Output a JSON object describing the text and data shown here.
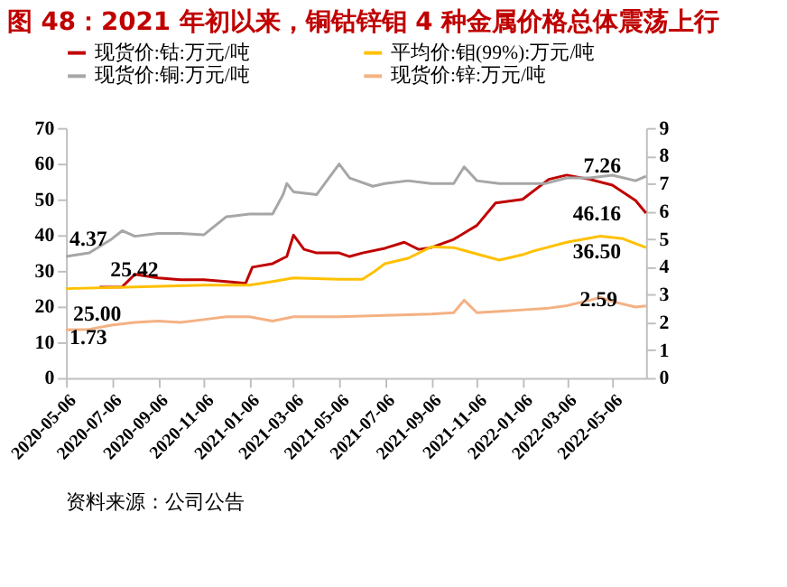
{
  "chart_data": {
    "type": "line",
    "title": "图 48：2021 年初以来，铜钴锌钼 4 种金属价格总体震荡上行",
    "annotations": [
      "资料来源：公司公告"
    ],
    "xlim": [
      "2020-05-06",
      "2022-06-20"
    ],
    "xticks": [
      "2020-05-06",
      "2020-07-06",
      "2020-09-06",
      "2020-11-06",
      "2021-01-06",
      "2021-03-06",
      "2021-05-06",
      "2021-07-06",
      "2021-09-06",
      "2021-11-06",
      "2022-01-06",
      "2022-03-06",
      "2022-05-06"
    ],
    "ylim": [
      0,
      70
    ],
    "yticks": [
      0,
      10,
      20,
      30,
      40,
      50,
      60,
      70
    ],
    "y2lim": [
      0,
      9
    ],
    "y2ticks": [
      0,
      1,
      2,
      3,
      4,
      5,
      6,
      7,
      8,
      9
    ],
    "grid": false,
    "legend": "top",
    "marker": "none",
    "line_style": "solid",
    "series": [
      {
        "name": "现货价:钴:万元/吨",
        "color": "#c00000",
        "x": [
          "2020-06-20",
          "2020-07-20",
          "2020-08-06",
          "2020-09-06",
          "2020-10-06",
          "2020-11-06",
          "2020-12-06",
          "2021-01-01",
          "2021-01-10",
          "2021-02-06",
          "2021-02-25",
          "2021-03-06",
          "2021-03-20",
          "2021-04-06",
          "2021-05-06",
          "2021-05-20",
          "2021-06-06",
          "2021-07-06",
          "2021-08-01",
          "2021-08-20",
          "2021-09-06",
          "2021-10-06",
          "2021-11-06",
          "2021-12-01",
          "2022-01-06",
          "2022-02-10",
          "2022-03-06",
          "2022-04-06",
          "2022-05-06",
          "2022-06-06",
          "2022-06-20"
        ],
        "values": [
          25.42,
          25.5,
          29,
          28,
          27.5,
          27.5,
          27,
          26.5,
          31,
          32,
          34,
          40,
          36,
          35,
          35,
          34,
          35,
          36.3,
          38,
          36,
          36.5,
          38.8,
          42.7,
          49,
          50,
          55.6,
          56.8,
          55.6,
          54,
          49.7,
          46.16
        ],
        "value_labels": [
          "25.42",
          null,
          null,
          null,
          null,
          null,
          null,
          null,
          null,
          null,
          null,
          null,
          null,
          null,
          null,
          null,
          null,
          null,
          null,
          null,
          null,
          null,
          null,
          null,
          null,
          null,
          null,
          null,
          null,
          null,
          "46.16"
        ]
      },
      {
        "name": "平均价:钼(99%):万元/吨",
        "color": "#ffc000",
        "x": [
          "2020-05-06",
          "2020-08-06",
          "2020-11-06",
          "2021-01-06",
          "2021-02-06",
          "2021-03-06",
          "2021-05-06",
          "2021-06-06",
          "2021-06-20",
          "2021-07-06",
          "2021-08-06",
          "2021-09-06",
          "2021-10-06",
          "2021-11-06",
          "2021-12-06",
          "2022-01-06",
          "2022-01-20",
          "2022-03-06",
          "2022-04-20",
          "2022-05-20",
          "2022-06-20"
        ],
        "values": [
          25.0,
          25.5,
          26,
          26,
          27,
          28,
          27.6,
          27.6,
          29.5,
          32,
          33.5,
          36.7,
          36.5,
          34.7,
          33,
          34.5,
          35.5,
          38,
          39.7,
          39,
          36.5
        ],
        "value_labels": [
          "25.00",
          null,
          null,
          null,
          null,
          null,
          null,
          null,
          null,
          null,
          null,
          null,
          null,
          null,
          null,
          null,
          null,
          null,
          null,
          null,
          "36.50"
        ]
      },
      {
        "name": "现货价:铜:万元/吨",
        "color": "#a6a6a6",
        "axis": "y2",
        "x": [
          "2020-05-06",
          "2020-06-06",
          "2020-07-06",
          "2020-07-20",
          "2020-08-06",
          "2020-09-06",
          "2020-10-06",
          "2020-11-06",
          "2020-12-06",
          "2021-01-06",
          "2021-02-06",
          "2021-02-20",
          "2021-02-25",
          "2021-03-06",
          "2021-04-06",
          "2021-05-06",
          "2021-05-20",
          "2021-06-20",
          "2021-07-06",
          "2021-08-06",
          "2021-09-06",
          "2021-10-06",
          "2021-10-20",
          "2021-11-06",
          "2021-12-06",
          "2022-01-06",
          "2022-02-06",
          "2022-03-06",
          "2022-04-06",
          "2022-05-06",
          "2022-06-06",
          "2022-06-20"
        ],
        "values": [
          4.37,
          4.5,
          5.0,
          5.3,
          5.1,
          5.2,
          5.2,
          5.15,
          5.8,
          5.9,
          5.9,
          6.6,
          7.0,
          6.7,
          6.6,
          7.7,
          7.2,
          6.9,
          7.0,
          7.1,
          7.0,
          7.0,
          7.6,
          7.1,
          7.0,
          7.0,
          7.0,
          7.2,
          7.2,
          7.3,
          7.1,
          7.26
        ],
        "value_labels": [
          "4.37",
          null,
          null,
          null,
          null,
          null,
          null,
          null,
          null,
          null,
          null,
          null,
          null,
          null,
          null,
          null,
          null,
          null,
          null,
          null,
          null,
          null,
          null,
          null,
          null,
          null,
          null,
          null,
          null,
          null,
          null,
          "7.26"
        ]
      },
      {
        "name": "现货价:锌:万元/吨",
        "color": "#f4b183",
        "axis": "y2",
        "x": [
          "2020-05-06",
          "2020-06-06",
          "2020-07-06",
          "2020-08-06",
          "2020-09-06",
          "2020-10-06",
          "2020-11-06",
          "2020-12-06",
          "2021-01-06",
          "2021-02-06",
          "2021-03-06",
          "2021-05-06",
          "2021-07-06",
          "2021-09-06",
          "2021-10-06",
          "2021-10-20",
          "2021-11-06",
          "2021-12-06",
          "2022-01-06",
          "2022-02-06",
          "2022-03-06",
          "2022-04-06",
          "2022-04-20",
          "2022-05-06",
          "2022-06-06",
          "2022-06-20"
        ],
        "values": [
          1.73,
          1.75,
          1.9,
          2.0,
          2.05,
          2.0,
          2.1,
          2.2,
          2.2,
          2.05,
          2.2,
          2.2,
          2.25,
          2.3,
          2.35,
          2.8,
          2.35,
          2.4,
          2.45,
          2.5,
          2.6,
          2.8,
          2.9,
          2.75,
          2.55,
          2.59
        ],
        "value_labels": [
          "1.73",
          null,
          null,
          null,
          null,
          null,
          null,
          null,
          null,
          null,
          null,
          null,
          null,
          null,
          null,
          null,
          null,
          null,
          null,
          null,
          null,
          null,
          null,
          null,
          null,
          "2.59"
        ]
      }
    ]
  }
}
